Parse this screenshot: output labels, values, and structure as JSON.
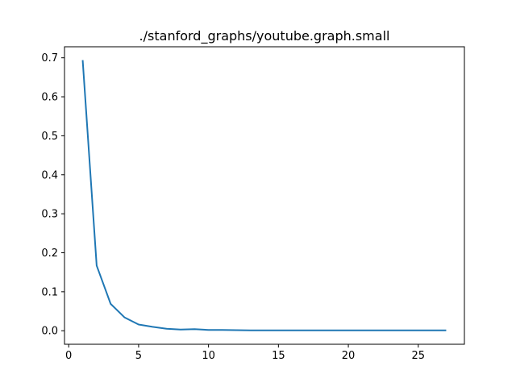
{
  "chart_data": {
    "type": "line",
    "title": "./stanford_graphs/youtube.graph.small",
    "xlabel": "",
    "ylabel": "",
    "xlim": [
      -0.3,
      28.3
    ],
    "ylim": [
      -0.0347,
      0.7283
    ],
    "grid": false,
    "xticks": [
      0,
      5,
      10,
      15,
      20,
      25
    ],
    "xtick_labels": [
      "0",
      "5",
      "10",
      "15",
      "20",
      "25"
    ],
    "yticks": [
      0.0,
      0.1,
      0.2,
      0.3,
      0.4,
      0.5,
      0.6,
      0.7
    ],
    "ytick_labels": [
      "0.0",
      "0.1",
      "0.2",
      "0.3",
      "0.4",
      "0.5",
      "0.6",
      "0.7"
    ],
    "series": [
      {
        "color": "#1f77b4",
        "x": [
          1,
          2,
          3,
          4,
          5,
          6,
          7,
          8,
          9,
          10,
          11,
          12,
          13,
          14,
          15,
          16,
          17,
          18,
          19,
          20,
          21,
          22,
          23,
          24,
          25,
          26,
          27
        ],
        "y": [
          0.694,
          0.167,
          0.069,
          0.034,
          0.016,
          0.01,
          0.005,
          0.003,
          0.004,
          0.002,
          0.002,
          0.0015,
          0.001,
          0.001,
          0.001,
          0.001,
          0.001,
          0.001,
          0.001,
          0.001,
          0.001,
          0.001,
          0.001,
          0.001,
          0.001,
          0.001,
          0.001
        ]
      }
    ]
  }
}
